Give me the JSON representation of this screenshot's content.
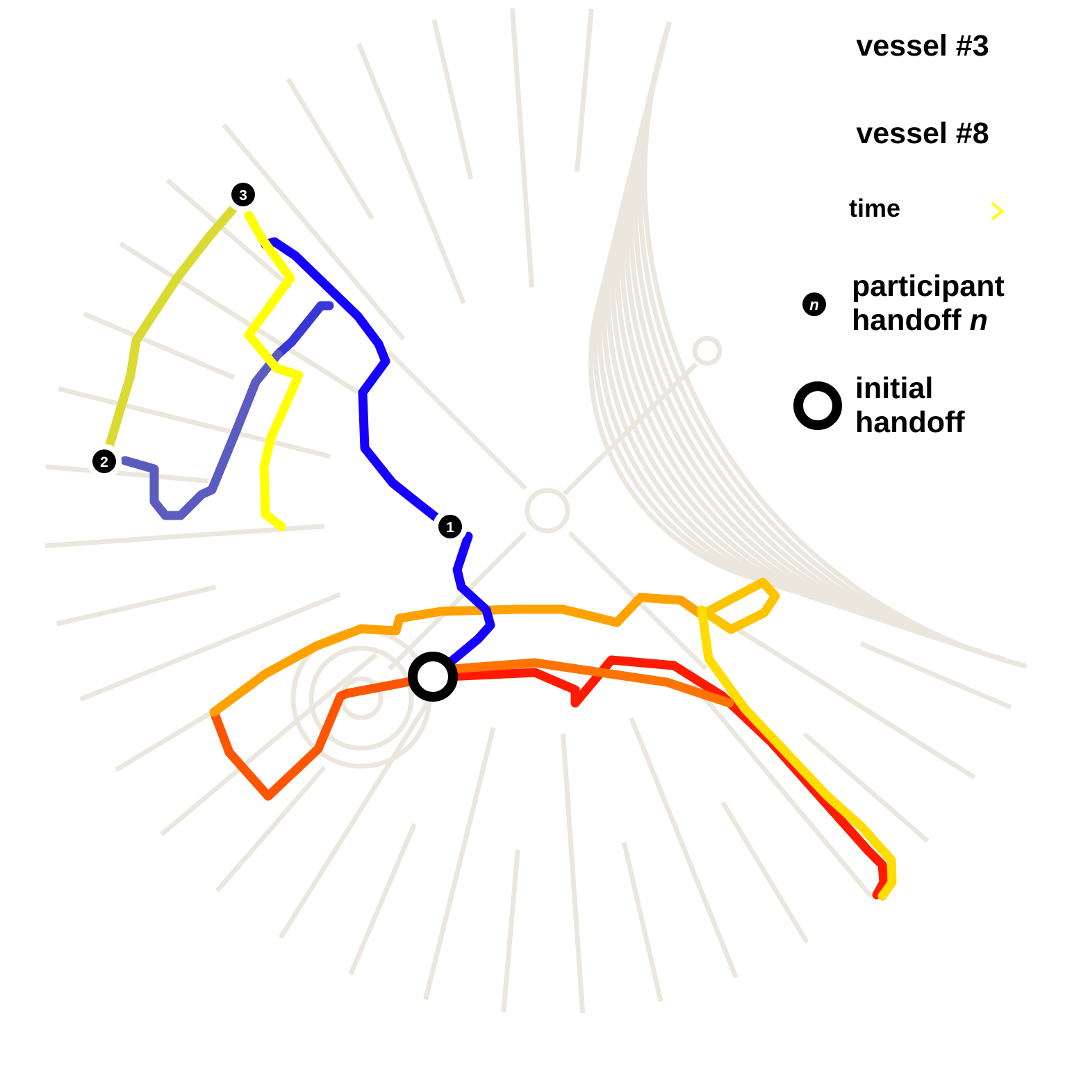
{
  "legend": {
    "vessel3_label": "vessel #3",
    "vessel8_label": "vessel #8",
    "time_label": "time",
    "participant_line1": "participant",
    "participant_line2": "handoff ",
    "participant_var": "n",
    "participant_marker": "n",
    "initial_line1": "initial",
    "initial_line2": "handoff"
  },
  "handoff_markers": [
    "1",
    "2",
    "3"
  ],
  "colors": {
    "grid": "#ebe7de",
    "vessel3_start": "#ff1a00",
    "vessel3_mid": "#ff9a00",
    "vessel3_end": "#ffee00",
    "vessel8_start": "#1500ff",
    "vessel8_mid": "#5b5bc0",
    "vessel8_end": "#ffff00",
    "marker": "#000000"
  }
}
